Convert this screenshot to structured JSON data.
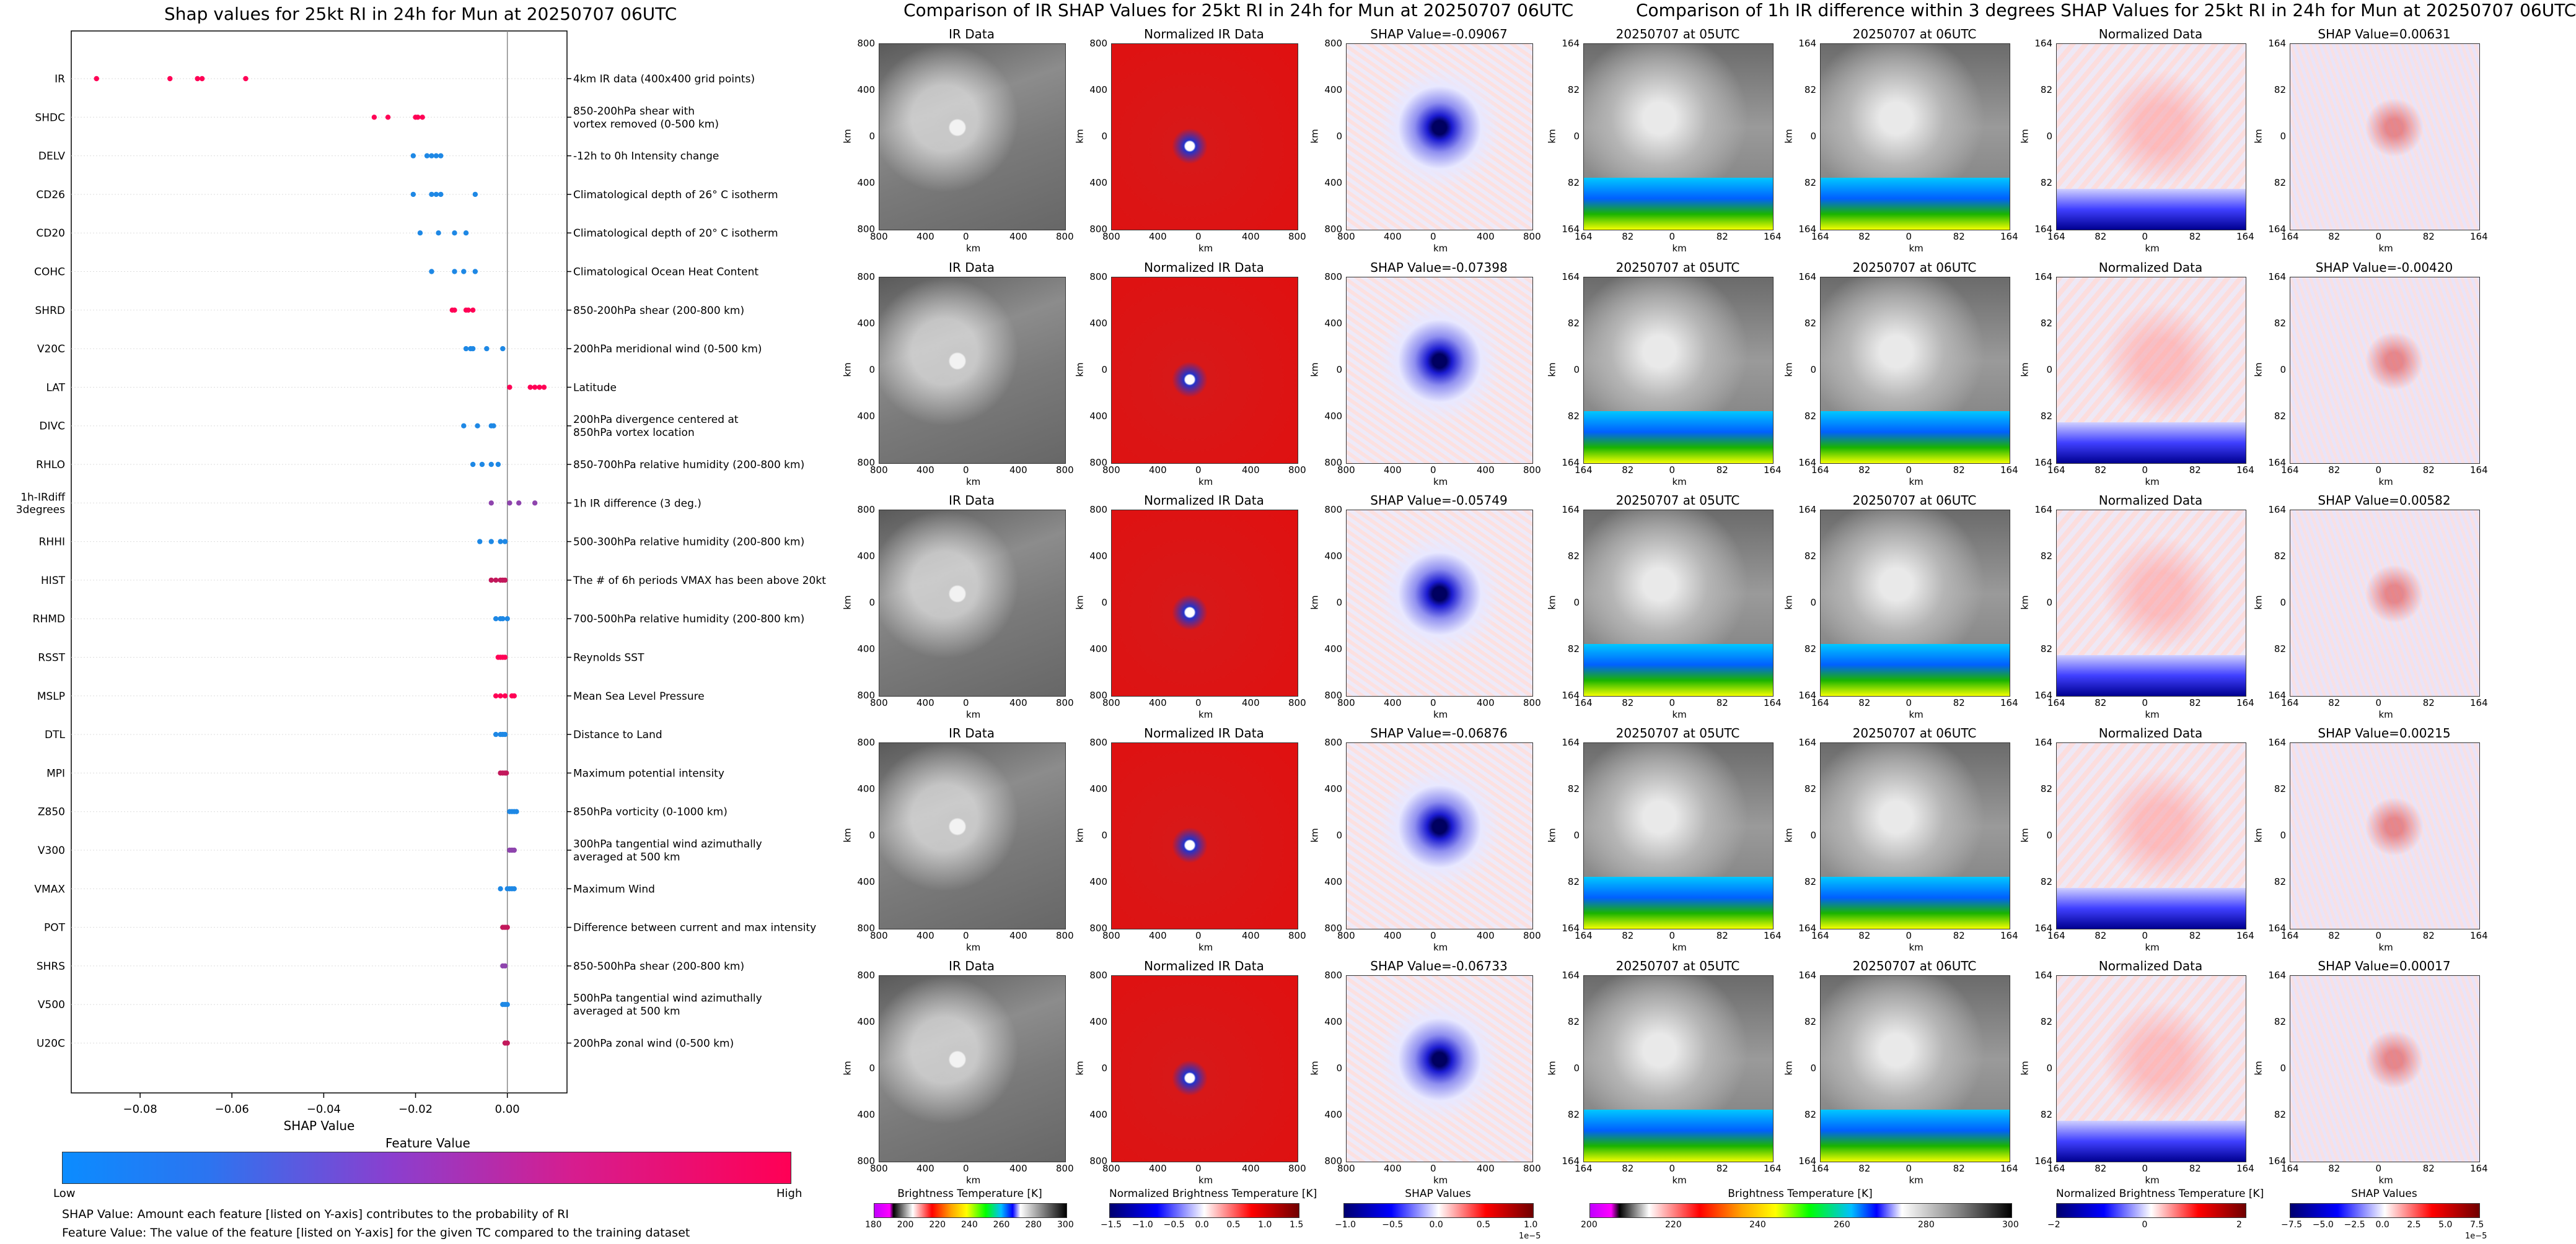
{
  "left_chart": {
    "title": "Shap values for 25kt RI in 24h for Mun at 20250707 06UTC",
    "xlabel": "SHAP Value",
    "x_ticks": [
      "−0.08",
      "−0.06",
      "−0.04",
      "−0.02",
      "0.00"
    ],
    "features": [
      {
        "name": "IR",
        "desc": [
          "4km IR data (400x400 grid points)"
        ]
      },
      {
        "name": "SHDC",
        "desc": [
          "850-200hPa shear with",
          "vortex removed (0-500 km)"
        ]
      },
      {
        "name": "DELV",
        "desc": [
          "-12h to 0h Intensity change"
        ]
      },
      {
        "name": "CD26",
        "desc": [
          "Climatological depth of 26° C isotherm"
        ]
      },
      {
        "name": "CD20",
        "desc": [
          "Climatological depth of 20° C isotherm"
        ]
      },
      {
        "name": "COHC",
        "desc": [
          "Climatological Ocean Heat Content"
        ]
      },
      {
        "name": "SHRD",
        "desc": [
          "850-200hPa shear (200-800 km)"
        ]
      },
      {
        "name": "V20C",
        "desc": [
          "200hPa meridional wind (0-500 km)"
        ]
      },
      {
        "name": "LAT",
        "desc": [
          "Latitude"
        ]
      },
      {
        "name": "DIVC",
        "desc": [
          "200hPa divergence centered at",
          "850hPa vortex location"
        ]
      },
      {
        "name": "RHLO",
        "desc": [
          "850-700hPa relative humidity (200-800 km)"
        ]
      },
      {
        "name": "1h-IRdiff\n3degrees",
        "desc": [
          "1h IR difference (3 deg.)"
        ]
      },
      {
        "name": "RHHI",
        "desc": [
          "500-300hPa relative humidity (200-800 km)"
        ]
      },
      {
        "name": "HIST",
        "desc": [
          "The # of 6h periods VMAX has been above 20kt"
        ]
      },
      {
        "name": "RHMD",
        "desc": [
          "700-500hPa relative humidity (200-800 km)"
        ]
      },
      {
        "name": "RSST",
        "desc": [
          "Reynolds SST"
        ]
      },
      {
        "name": "MSLP",
        "desc": [
          "Mean Sea Level Pressure"
        ]
      },
      {
        "name": "DTL",
        "desc": [
          "Distance to Land"
        ]
      },
      {
        "name": "MPI",
        "desc": [
          "Maximum potential intensity"
        ]
      },
      {
        "name": "Z850",
        "desc": [
          "850hPa vorticity (0-1000 km)"
        ]
      },
      {
        "name": "V300",
        "desc": [
          "300hPa tangential wind azimuthally",
          "averaged at 500 km"
        ]
      },
      {
        "name": "VMAX",
        "desc": [
          "Maximum Wind"
        ]
      },
      {
        "name": "POT",
        "desc": [
          "Difference between current and max intensity"
        ]
      },
      {
        "name": "SHRS",
        "desc": [
          "850-500hPa shear (200-800 km)"
        ]
      },
      {
        "name": "V500",
        "desc": [
          "500hPa tangential wind azimuthally",
          "averaged at 500 km"
        ]
      },
      {
        "name": "U20C",
        "desc": [
          "200hPa zonal wind (0-500 km)"
        ]
      }
    ],
    "colorbar_title": "Feature Value",
    "colorbar_low": "Low",
    "colorbar_high": "High",
    "note1": "SHAP Value: Amount each feature [listed on Y-axis] contributes to the probability of RI",
    "note2": "Feature Value: The value of the feature [listed on Y-axis] for the given TC compared to the training dataset"
  },
  "chart_data": {
    "type": "scatter",
    "title": "Shap values for 25kt RI in 24h for Mun at 20250707 06UTC",
    "xlabel": "SHAP Value",
    "xlim": [
      -0.095,
      0.013
    ],
    "series": [
      {
        "feature": "IR",
        "values": [
          -0.0895,
          -0.0735,
          -0.0675,
          -0.0665,
          -0.057
        ],
        "color": "#ff0055"
      },
      {
        "feature": "SHDC",
        "values": [
          -0.029,
          -0.026,
          -0.02,
          -0.0195,
          -0.0185
        ],
        "color": "#ff0055"
      },
      {
        "feature": "DELV",
        "values": [
          -0.0205,
          -0.0175,
          -0.0165,
          -0.0155,
          -0.0145
        ],
        "color": "#1e88e5"
      },
      {
        "feature": "CD26",
        "values": [
          -0.0205,
          -0.0165,
          -0.0155,
          -0.0145,
          -0.007
        ],
        "color": "#1e88e5"
      },
      {
        "feature": "CD20",
        "values": [
          -0.019,
          -0.015,
          -0.0115,
          -0.009
        ],
        "color": "#1e88e5"
      },
      {
        "feature": "COHC",
        "values": [
          -0.0165,
          -0.0115,
          -0.0095,
          -0.007
        ],
        "color": "#1e88e5"
      },
      {
        "feature": "SHRD",
        "values": [
          -0.012,
          -0.0115,
          -0.009,
          -0.0085,
          -0.0075
        ],
        "color": "#ff0055"
      },
      {
        "feature": "V20C",
        "values": [
          -0.009,
          -0.008,
          -0.0075,
          -0.0045,
          -0.001
        ],
        "color": "#1e88e5"
      },
      {
        "feature": "LAT",
        "values": [
          0.0005,
          0.005,
          0.006,
          0.007,
          0.008
        ],
        "color": "#ff0055"
      },
      {
        "feature": "DIVC",
        "values": [
          -0.0095,
          -0.0065,
          -0.0035,
          -0.003
        ],
        "color": "#1e88e5"
      },
      {
        "feature": "RHLO",
        "values": [
          -0.0075,
          -0.0055,
          -0.0035,
          -0.002
        ],
        "color": "#1e88e5"
      },
      {
        "feature": "1h-IRdiff 3degrees",
        "values": [
          -0.0035,
          0.0005,
          0.0025,
          0.006
        ],
        "color": "#8e44ad"
      },
      {
        "feature": "RHHI",
        "values": [
          -0.006,
          -0.0035,
          -0.0015,
          -0.0005
        ],
        "color": "#1e88e5"
      },
      {
        "feature": "HIST",
        "values": [
          -0.0035,
          -0.0025,
          -0.0015,
          -0.001,
          -0.0005
        ],
        "color": "#c2185b"
      },
      {
        "feature": "RHMD",
        "values": [
          -0.0025,
          -0.0015,
          -0.001,
          0.0
        ],
        "color": "#1e88e5"
      },
      {
        "feature": "RSST",
        "values": [
          -0.002,
          -0.0015,
          -0.001,
          -0.0005
        ],
        "color": "#ff0055"
      },
      {
        "feature": "MSLP",
        "values": [
          -0.0025,
          -0.0015,
          -0.0005,
          0.001,
          0.0015
        ],
        "color": "#ff0055"
      },
      {
        "feature": "DTL",
        "values": [
          -0.0025,
          -0.0015,
          -0.001,
          -0.0005
        ],
        "color": "#1e88e5"
      },
      {
        "feature": "MPI",
        "values": [
          -0.0015,
          -0.001,
          -0.0005,
          -0.0002
        ],
        "color": "#c2185b"
      },
      {
        "feature": "Z850",
        "values": [
          0.0005,
          0.001,
          0.0015,
          0.002
        ],
        "color": "#1e88e5"
      },
      {
        "feature": "V300",
        "values": [
          0.0005,
          0.001,
          0.0015
        ],
        "color": "#8e44ad"
      },
      {
        "feature": "VMAX",
        "values": [
          -0.0015,
          0.0,
          0.0005,
          0.001,
          0.0015
        ],
        "color": "#1e88e5"
      },
      {
        "feature": "POT",
        "values": [
          -0.001,
          -0.0005,
          0.0
        ],
        "color": "#c2185b"
      },
      {
        "feature": "SHRS",
        "values": [
          -0.001,
          -0.0005
        ],
        "color": "#8e44ad"
      },
      {
        "feature": "V500",
        "values": [
          -0.001,
          -0.0005,
          0.0
        ],
        "color": "#1e88e5"
      },
      {
        "feature": "U20C",
        "values": [
          -0.0005,
          0.0
        ],
        "color": "#c2185b"
      }
    ]
  },
  "ir_section": {
    "title": "Comparison of IR SHAP Values for 25kt RI in 24h for Mun at 20250707 06UTC",
    "col1_title": "IR Data",
    "col2_title": "Normalized IR Data",
    "shap_titles": [
      "SHAP Value=-0.09067",
      "SHAP Value=-0.07398",
      "SHAP Value=-0.05749",
      "SHAP Value=-0.06876",
      "SHAP Value=-0.06733"
    ],
    "axis_label": "km",
    "x_ticks": [
      "800",
      "400",
      "0",
      "400",
      "800"
    ],
    "y_ticks": [
      "800",
      "400",
      "0",
      "400",
      "800"
    ],
    "cb1_title": "Brightness Temperature [K]",
    "cb1_ticks": [
      "180",
      "200",
      "220",
      "240",
      "260",
      "280",
      "300"
    ],
    "cb2_title": "Normalized Brightness Temperature [K]",
    "cb2_ticks": [
      "−1.5",
      "−1.0",
      "−0.5",
      "0.0",
      "0.5",
      "1.0",
      "1.5"
    ],
    "cb3_title": "SHAP Values",
    "cb3_ticks": [
      "−1.0",
      "−0.5",
      "0.0",
      "0.5",
      "1.0"
    ],
    "cb3_exp": "1e−5"
  },
  "diff_section": {
    "title": "Comparison of 1h IR difference within 3 degrees SHAP Values for 25kt RI in 24h for Mun at 20250707 06UTC",
    "col1_title": "20250707 at 05UTC",
    "col2_title": "20250707 at 06UTC",
    "col3_title": "Normalized Data",
    "shap_titles": [
      "SHAP Value=0.00631",
      "SHAP Value=-0.00420",
      "SHAP Value=0.00582",
      "SHAP Value=0.00215",
      "SHAP Value=0.00017"
    ],
    "axis_label": "km",
    "x_ticks": [
      "164",
      "82",
      "0",
      "82",
      "164"
    ],
    "y_ticks": [
      "164",
      "82",
      "0",
      "82",
      "164"
    ],
    "cb1_title": "Brightness Temperature [K]",
    "cb1_ticks": [
      "200",
      "220",
      "240",
      "260",
      "280",
      "300"
    ],
    "cb2_title": "Normalized Brightness Temperature [K]",
    "cb2_ticks": [
      "−2",
      "0",
      "2"
    ],
    "cb3_title": "SHAP Values",
    "cb3_ticks": [
      "−7.5",
      "−5.0",
      "−2.5",
      "0.0",
      "2.5",
      "5.0",
      "7.5"
    ],
    "cb3_exp": "1e−5"
  }
}
